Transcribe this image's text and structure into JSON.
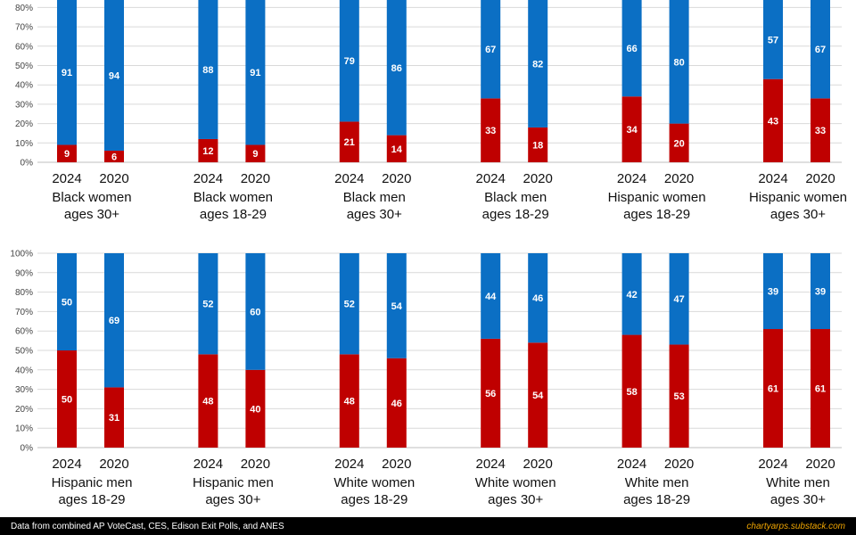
{
  "footer": {
    "source": "Data from combined AP VoteCast, CES, Edison Exit Polls, and ANES",
    "site": "chartyarps.substack.com"
  },
  "colors": {
    "dem": "#0b6fc4",
    "rep": "#bf0000",
    "grid": "#d9d9d9"
  },
  "chart_data": [
    {
      "type": "bar",
      "stacked": true,
      "y_ticks": [
        "0%",
        "10%",
        "20%",
        "30%",
        "40%",
        "50%",
        "60%",
        "70%",
        "80%"
      ],
      "ylim": [
        0,
        100
      ],
      "groups": [
        {
          "label": [
            "Black women",
            "ages 30+"
          ],
          "categories": [
            "2024",
            "2020"
          ],
          "series": [
            {
              "color_key": "rep",
              "values": [
                9,
                6
              ]
            },
            {
              "color_key": "dem",
              "values": [
                91,
                94
              ]
            }
          ]
        },
        {
          "label": [
            "Black women",
            "ages 18-29"
          ],
          "categories": [
            "2024",
            "2020"
          ],
          "series": [
            {
              "color_key": "rep",
              "values": [
                12,
                9
              ]
            },
            {
              "color_key": "dem",
              "values": [
                88,
                91
              ]
            }
          ]
        },
        {
          "label": [
            "Black men",
            "ages 30+"
          ],
          "categories": [
            "2024",
            "2020"
          ],
          "series": [
            {
              "color_key": "rep",
              "values": [
                21,
                14
              ]
            },
            {
              "color_key": "dem",
              "values": [
                79,
                86
              ]
            }
          ]
        },
        {
          "label": [
            "Black men",
            "ages 18-29"
          ],
          "categories": [
            "2024",
            "2020"
          ],
          "series": [
            {
              "color_key": "rep",
              "values": [
                33,
                18
              ]
            },
            {
              "color_key": "dem",
              "values": [
                67,
                82
              ]
            }
          ]
        },
        {
          "label": [
            "Hispanic women",
            "ages 18-29"
          ],
          "categories": [
            "2024",
            "2020"
          ],
          "series": [
            {
              "color_key": "rep",
              "values": [
                34,
                20
              ]
            },
            {
              "color_key": "dem",
              "values": [
                66,
                80
              ]
            }
          ]
        },
        {
          "label": [
            "Hispanic women",
            "ages 30+"
          ],
          "categories": [
            "2024",
            "2020"
          ],
          "series": [
            {
              "color_key": "rep",
              "values": [
                43,
                33
              ]
            },
            {
              "color_key": "dem",
              "values": [
                57,
                67
              ]
            }
          ]
        }
      ]
    },
    {
      "type": "bar",
      "stacked": true,
      "y_ticks": [
        "0%",
        "10%",
        "20%",
        "30%",
        "40%",
        "50%",
        "60%",
        "70%",
        "80%",
        "90%",
        "100%"
      ],
      "ylim": [
        0,
        100
      ],
      "groups": [
        {
          "label": [
            "Hispanic men",
            "ages 18-29"
          ],
          "categories": [
            "2024",
            "2020"
          ],
          "series": [
            {
              "color_key": "rep",
              "values": [
                50,
                31
              ]
            },
            {
              "color_key": "dem",
              "values": [
                50,
                69
              ]
            }
          ]
        },
        {
          "label": [
            "Hispanic men",
            "ages 30+"
          ],
          "categories": [
            "2024",
            "2020"
          ],
          "series": [
            {
              "color_key": "rep",
              "values": [
                48,
                40
              ]
            },
            {
              "color_key": "dem",
              "values": [
                52,
                60
              ]
            }
          ]
        },
        {
          "label": [
            "White women",
            "ages 18-29"
          ],
          "categories": [
            "2024",
            "2020"
          ],
          "series": [
            {
              "color_key": "rep",
              "values": [
                48,
                46
              ]
            },
            {
              "color_key": "dem",
              "values": [
                52,
                54
              ]
            }
          ]
        },
        {
          "label": [
            "White women",
            "ages 30+"
          ],
          "categories": [
            "2024",
            "2020"
          ],
          "series": [
            {
              "color_key": "rep",
              "values": [
                56,
                54
              ]
            },
            {
              "color_key": "dem",
              "values": [
                44,
                46
              ]
            }
          ]
        },
        {
          "label": [
            "White men",
            "ages 18-29"
          ],
          "categories": [
            "2024",
            "2020"
          ],
          "series": [
            {
              "color_key": "rep",
              "values": [
                58,
                53
              ]
            },
            {
              "color_key": "dem",
              "values": [
                42,
                47
              ]
            }
          ]
        },
        {
          "label": [
            "White men",
            "ages 30+"
          ],
          "categories": [
            "2024",
            "2020"
          ],
          "series": [
            {
              "color_key": "rep",
              "values": [
                61,
                61
              ]
            },
            {
              "color_key": "dem",
              "values": [
                39,
                39
              ]
            }
          ]
        }
      ]
    }
  ]
}
